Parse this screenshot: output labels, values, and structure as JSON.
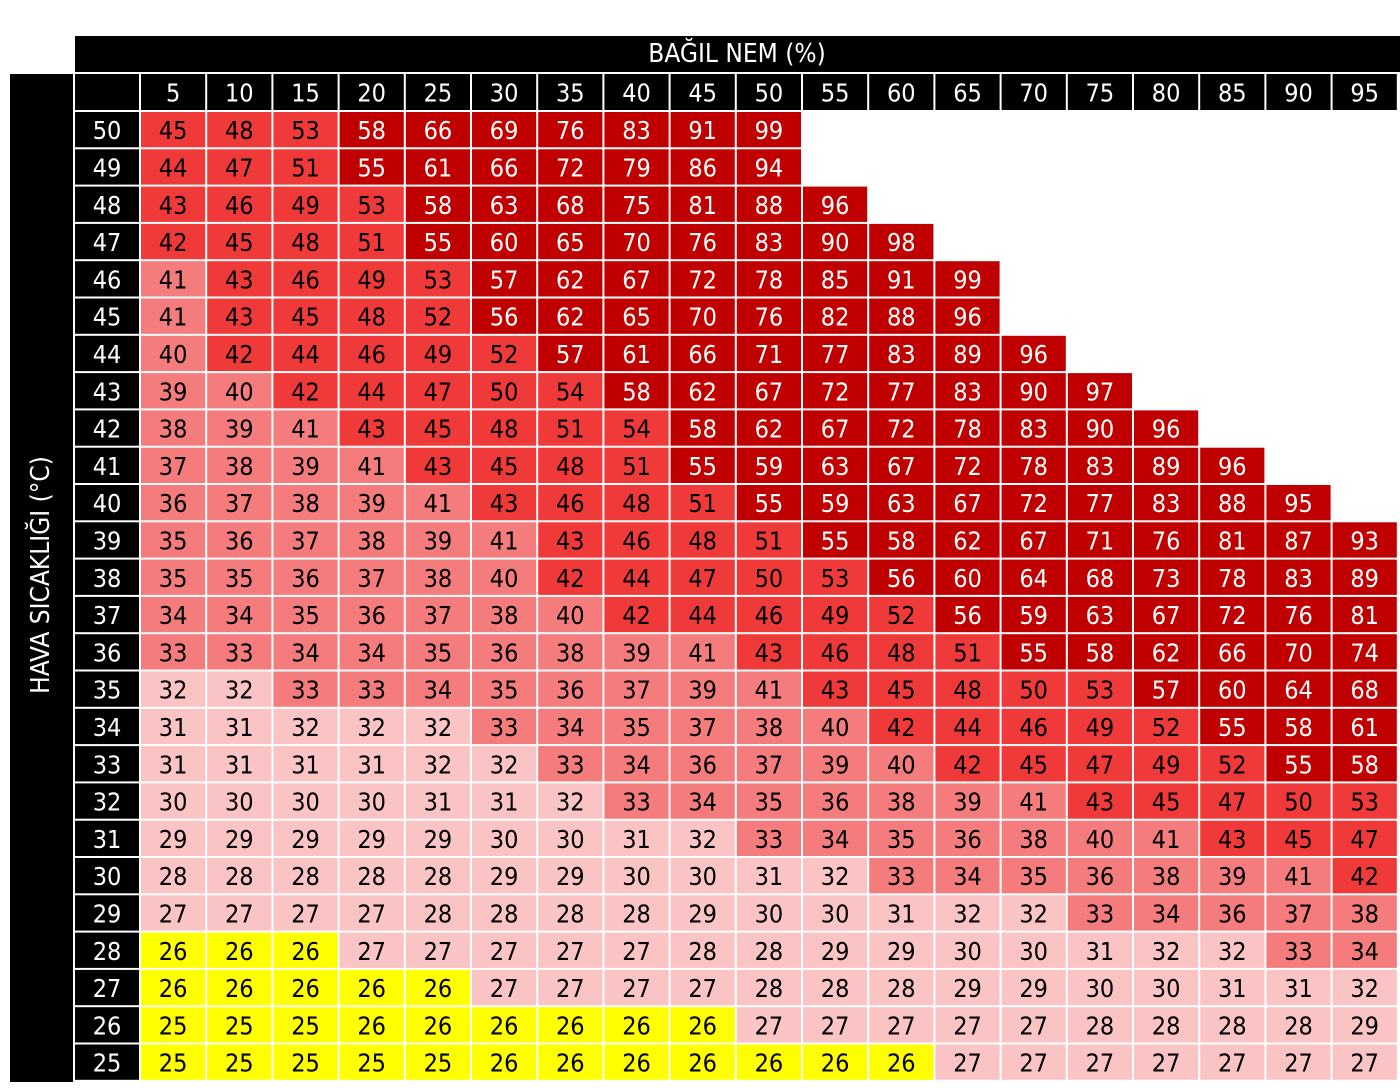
{
  "chart_data": {
    "type": "heatmap",
    "title": "BAĞIL NEM (%)",
    "ylabel": "HAVA SICAKLIĞI (°C)",
    "x": [
      5,
      10,
      15,
      20,
      25,
      30,
      35,
      40,
      45,
      50,
      55,
      60,
      65,
      70,
      75,
      80,
      85,
      90,
      95
    ],
    "y": [
      50,
      49,
      48,
      47,
      46,
      45,
      44,
      43,
      42,
      41,
      40,
      39,
      38,
      37,
      36,
      35,
      34,
      33,
      32,
      31,
      30,
      29,
      28,
      27,
      26,
      25
    ],
    "values": [
      [
        45,
        48,
        53,
        58,
        66,
        69,
        76,
        83,
        91,
        99,
        null,
        null,
        null,
        null,
        null,
        null,
        null,
        null,
        null
      ],
      [
        44,
        47,
        51,
        55,
        61,
        66,
        72,
        79,
        86,
        94,
        null,
        null,
        null,
        null,
        null,
        null,
        null,
        null,
        null
      ],
      [
        43,
        46,
        49,
        53,
        58,
        63,
        68,
        75,
        81,
        88,
        96,
        null,
        null,
        null,
        null,
        null,
        null,
        null,
        null
      ],
      [
        42,
        45,
        48,
        51,
        55,
        60,
        65,
        70,
        76,
        83,
        90,
        98,
        null,
        null,
        null,
        null,
        null,
        null,
        null
      ],
      [
        41,
        43,
        46,
        49,
        53,
        57,
        62,
        67,
        72,
        78,
        85,
        91,
        99,
        null,
        null,
        null,
        null,
        null,
        null
      ],
      [
        41,
        43,
        45,
        48,
        52,
        56,
        62,
        65,
        70,
        76,
        82,
        88,
        96,
        null,
        null,
        null,
        null,
        null,
        null
      ],
      [
        40,
        42,
        44,
        46,
        49,
        52,
        57,
        61,
        66,
        71,
        77,
        83,
        89,
        96,
        null,
        null,
        null,
        null,
        null
      ],
      [
        39,
        40,
        42,
        44,
        47,
        50,
        54,
        58,
        62,
        67,
        72,
        77,
        83,
        90,
        97,
        null,
        null,
        null,
        null
      ],
      [
        38,
        39,
        41,
        43,
        45,
        48,
        51,
        54,
        58,
        62,
        67,
        72,
        78,
        83,
        90,
        96,
        null,
        null,
        null
      ],
      [
        37,
        38,
        39,
        41,
        43,
        45,
        48,
        51,
        55,
        59,
        63,
        67,
        72,
        78,
        83,
        89,
        96,
        null,
        null
      ],
      [
        36,
        37,
        38,
        39,
        41,
        43,
        46,
        48,
        51,
        55,
        59,
        63,
        67,
        72,
        77,
        83,
        88,
        95,
        null
      ],
      [
        35,
        36,
        37,
        38,
        39,
        41,
        43,
        46,
        48,
        51,
        55,
        58,
        62,
        67,
        71,
        76,
        81,
        87,
        93
      ],
      [
        35,
        35,
        36,
        37,
        38,
        40,
        42,
        44,
        47,
        50,
        53,
        56,
        60,
        64,
        68,
        73,
        78,
        83,
        89
      ],
      [
        34,
        34,
        35,
        36,
        37,
        38,
        40,
        42,
        44,
        46,
        49,
        52,
        56,
        59,
        63,
        67,
        72,
        76,
        81
      ],
      [
        33,
        33,
        34,
        34,
        35,
        36,
        38,
        39,
        41,
        43,
        46,
        48,
        51,
        55,
        58,
        62,
        66,
        70,
        74
      ],
      [
        32,
        32,
        33,
        33,
        34,
        35,
        36,
        37,
        39,
        41,
        43,
        45,
        48,
        50,
        53,
        57,
        60,
        64,
        68
      ],
      [
        31,
        31,
        32,
        32,
        32,
        33,
        34,
        35,
        37,
        38,
        40,
        42,
        44,
        46,
        49,
        52,
        55,
        58,
        61
      ],
      [
        31,
        31,
        31,
        31,
        32,
        32,
        33,
        34,
        36,
        37,
        39,
        40,
        42,
        45,
        47,
        49,
        52,
        55,
        58
      ],
      [
        30,
        30,
        30,
        30,
        31,
        31,
        32,
        33,
        34,
        35,
        36,
        38,
        39,
        41,
        43,
        45,
        47,
        50,
        53
      ],
      [
        29,
        29,
        29,
        29,
        29,
        30,
        30,
        31,
        32,
        33,
        34,
        35,
        36,
        38,
        40,
        41,
        43,
        45,
        47
      ],
      [
        28,
        28,
        28,
        28,
        28,
        29,
        29,
        30,
        30,
        31,
        32,
        33,
        34,
        35,
        36,
        38,
        39,
        41,
        42
      ],
      [
        27,
        27,
        27,
        27,
        28,
        28,
        28,
        28,
        29,
        30,
        30,
        31,
        32,
        32,
        33,
        34,
        36,
        37,
        38
      ],
      [
        26,
        26,
        26,
        27,
        27,
        27,
        27,
        27,
        28,
        28,
        29,
        29,
        30,
        30,
        31,
        32,
        32,
        33,
        34
      ],
      [
        26,
        26,
        26,
        26,
        26,
        27,
        27,
        27,
        27,
        28,
        28,
        28,
        29,
        29,
        30,
        30,
        31,
        31,
        32
      ],
      [
        25,
        25,
        25,
        26,
        26,
        26,
        26,
        26,
        26,
        27,
        27,
        27,
        27,
        27,
        28,
        28,
        28,
        28,
        29
      ],
      [
        25,
        25,
        25,
        25,
        25,
        26,
        26,
        26,
        26,
        26,
        26,
        26,
        27,
        27,
        27,
        27,
        27,
        27,
        27
      ]
    ],
    "levels": [
      {
        "class": "yellow",
        "color": "#ffff00",
        "text_color": "#000000"
      },
      {
        "class": "light-pink",
        "color": "#fbc4c4",
        "text_color": "#000000"
      },
      {
        "class": "pink",
        "color": "#f47c7c",
        "text_color": "#000000"
      },
      {
        "class": "red",
        "color": "#f03a3a",
        "text_color": "#000000"
      },
      {
        "class": "dark-red",
        "color": "#c00000",
        "text_color": "#ffffff"
      }
    ],
    "level_grid": [
      [
        3,
        3,
        3,
        4,
        4,
        4,
        4,
        4,
        4,
        4,
        null,
        null,
        null,
        null,
        null,
        null,
        null,
        null,
        null
      ],
      [
        3,
        3,
        3,
        4,
        4,
        4,
        4,
        4,
        4,
        4,
        null,
        null,
        null,
        null,
        null,
        null,
        null,
        null,
        null
      ],
      [
        3,
        3,
        3,
        3,
        4,
        4,
        4,
        4,
        4,
        4,
        4,
        null,
        null,
        null,
        null,
        null,
        null,
        null,
        null
      ],
      [
        3,
        3,
        3,
        3,
        4,
        4,
        4,
        4,
        4,
        4,
        4,
        4,
        null,
        null,
        null,
        null,
        null,
        null,
        null
      ],
      [
        2,
        3,
        3,
        3,
        3,
        4,
        4,
        4,
        4,
        4,
        4,
        4,
        4,
        null,
        null,
        null,
        null,
        null,
        null
      ],
      [
        2,
        3,
        3,
        3,
        3,
        4,
        4,
        4,
        4,
        4,
        4,
        4,
        4,
        null,
        null,
        null,
        null,
        null,
        null
      ],
      [
        2,
        3,
        3,
        3,
        3,
        3,
        4,
        4,
        4,
        4,
        4,
        4,
        4,
        4,
        null,
        null,
        null,
        null,
        null
      ],
      [
        2,
        2,
        3,
        3,
        3,
        3,
        3,
        4,
        4,
        4,
        4,
        4,
        4,
        4,
        4,
        null,
        null,
        null,
        null
      ],
      [
        2,
        2,
        2,
        3,
        3,
        3,
        3,
        3,
        4,
        4,
        4,
        4,
        4,
        4,
        4,
        4,
        null,
        null,
        null
      ],
      [
        2,
        2,
        2,
        2,
        3,
        3,
        3,
        3,
        4,
        4,
        4,
        4,
        4,
        4,
        4,
        4,
        4,
        null,
        null
      ],
      [
        2,
        2,
        2,
        2,
        2,
        3,
        3,
        3,
        3,
        4,
        4,
        4,
        4,
        4,
        4,
        4,
        4,
        4,
        null
      ],
      [
        2,
        2,
        2,
        2,
        2,
        2,
        3,
        3,
        3,
        3,
        4,
        4,
        4,
        4,
        4,
        4,
        4,
        4,
        4
      ],
      [
        2,
        2,
        2,
        2,
        2,
        2,
        3,
        3,
        3,
        3,
        3,
        4,
        4,
        4,
        4,
        4,
        4,
        4,
        4
      ],
      [
        2,
        2,
        2,
        2,
        2,
        2,
        2,
        3,
        3,
        3,
        3,
        3,
        4,
        4,
        4,
        4,
        4,
        4,
        4
      ],
      [
        2,
        2,
        2,
        2,
        2,
        2,
        2,
        2,
        2,
        3,
        3,
        3,
        3,
        4,
        4,
        4,
        4,
        4,
        4
      ],
      [
        1,
        1,
        2,
        2,
        2,
        2,
        2,
        2,
        2,
        2,
        3,
        3,
        3,
        3,
        3,
        4,
        4,
        4,
        4
      ],
      [
        1,
        1,
        1,
        1,
        1,
        2,
        2,
        2,
        2,
        2,
        2,
        3,
        3,
        3,
        3,
        3,
        4,
        4,
        4
      ],
      [
        1,
        1,
        1,
        1,
        1,
        1,
        2,
        2,
        2,
        2,
        2,
        2,
        3,
        3,
        3,
        3,
        3,
        4,
        4
      ],
      [
        1,
        1,
        1,
        1,
        1,
        1,
        1,
        2,
        2,
        2,
        2,
        2,
        2,
        2,
        3,
        3,
        3,
        3,
        3
      ],
      [
        1,
        1,
        1,
        1,
        1,
        1,
        1,
        1,
        1,
        2,
        2,
        2,
        2,
        2,
        2,
        2,
        3,
        3,
        3
      ],
      [
        1,
        1,
        1,
        1,
        1,
        1,
        1,
        1,
        1,
        1,
        1,
        2,
        2,
        2,
        2,
        2,
        2,
        2,
        3
      ],
      [
        1,
        1,
        1,
        1,
        1,
        1,
        1,
        1,
        1,
        1,
        1,
        1,
        1,
        1,
        2,
        2,
        2,
        2,
        2
      ],
      [
        0,
        0,
        0,
        1,
        1,
        1,
        1,
        1,
        1,
        1,
        1,
        1,
        1,
        1,
        1,
        1,
        1,
        2,
        2
      ],
      [
        0,
        0,
        0,
        0,
        0,
        1,
        1,
        1,
        1,
        1,
        1,
        1,
        1,
        1,
        1,
        1,
        1,
        1,
        1
      ],
      [
        0,
        0,
        0,
        0,
        0,
        0,
        0,
        0,
        0,
        1,
        1,
        1,
        1,
        1,
        1,
        1,
        1,
        1,
        1
      ],
      [
        0,
        0,
        0,
        0,
        0,
        0,
        0,
        0,
        0,
        0,
        0,
        0,
        1,
        1,
        1,
        1,
        1,
        1,
        1
      ]
    ]
  }
}
